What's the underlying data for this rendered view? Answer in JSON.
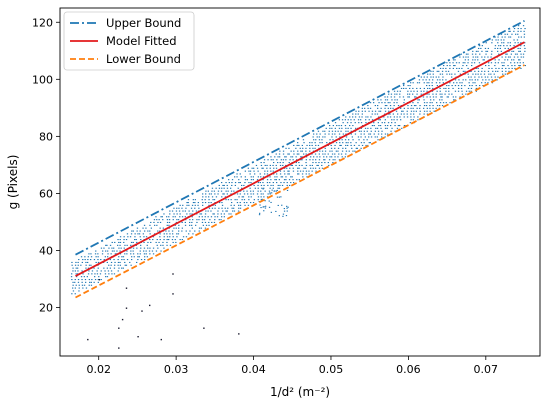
{
  "chart_data": {
    "type": "scatter",
    "xlabel": "1/d² (m⁻²)",
    "ylabel": "g (Pixels)",
    "xlim": [
      0.015,
      0.077
    ],
    "ylim": [
      3,
      125
    ],
    "x_ticks": [
      0.02,
      0.03,
      0.04,
      0.05,
      0.06,
      0.07
    ],
    "x_tick_labels": [
      "0.02",
      "0.03",
      "0.04",
      "0.05",
      "0.06",
      "0.07"
    ],
    "y_ticks": [
      20,
      40,
      60,
      80,
      100,
      120
    ],
    "y_tick_labels": [
      "20",
      "40",
      "60",
      "80",
      "100",
      "120"
    ],
    "legend_position": "top-left",
    "series": [
      {
        "name": "Upper Bound",
        "kind": "line",
        "style": "dashdot",
        "color": "#1f77b4",
        "x": [
          0.017,
          0.075
        ],
        "y": [
          38.5,
          120.5
        ]
      },
      {
        "name": "Model Fitted",
        "kind": "line",
        "style": "solid",
        "color": "#e31a1c",
        "x": [
          0.017,
          0.075
        ],
        "y": [
          31,
          113
        ]
      },
      {
        "name": "Lower Bound",
        "kind": "line",
        "style": "dashed",
        "color": "#ff7f0e",
        "x": [
          0.017,
          0.075
        ],
        "y": [
          23.5,
          105
        ]
      }
    ],
    "scatter": {
      "color": "#1f77b4",
      "band_center_slope": 1410,
      "band_center_intercept": 7.0,
      "x_range": [
        0.0165,
        0.0752
      ],
      "y_step": 1,
      "outliers": [
        {
          "x": 0.0185,
          "y": 9
        },
        {
          "x": 0.0225,
          "y": 6
        },
        {
          "x": 0.0225,
          "y": 13
        },
        {
          "x": 0.023,
          "y": 16
        },
        {
          "x": 0.0235,
          "y": 20
        },
        {
          "x": 0.0235,
          "y": 27
        },
        {
          "x": 0.025,
          "y": 10
        },
        {
          "x": 0.0255,
          "y": 19
        },
        {
          "x": 0.0265,
          "y": 21
        },
        {
          "x": 0.028,
          "y": 9
        },
        {
          "x": 0.0295,
          "y": 25
        },
        {
          "x": 0.0295,
          "y": 32
        },
        {
          "x": 0.0335,
          "y": 13
        },
        {
          "x": 0.038,
          "y": 11
        },
        {
          "x": 0.02,
          "y": 30
        }
      ]
    }
  }
}
